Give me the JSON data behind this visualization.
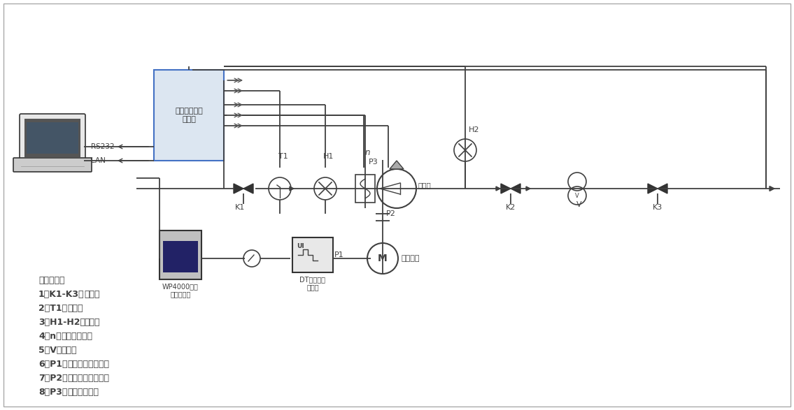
{
  "bg_color": "#ffffff",
  "line_color": "#404040",
  "box_fill": "#dce6f1",
  "text_color": "#000000",
  "title_color": "#000000",
  "legend_items": [
    {
      "num": "1",
      "key": "K1-K3",
      "desc": "电磁阀"
    },
    {
      "num": "2",
      "key": "T1",
      "desc": "温度计"
    },
    {
      "num": "3",
      "key": "H1-H2",
      "desc": "压力计"
    },
    {
      "num": "4",
      "key": "n",
      "desc": "水泵实时转速"
    },
    {
      "num": "5",
      "key": "V",
      "desc": "流量计"
    },
    {
      "num": "6",
      "key": "P1",
      "desc": "拖动电机输入功率"
    },
    {
      "num": "7",
      "key": "P2",
      "desc": "拖动电机输出功率"
    },
    {
      "num": "8",
      "key": "P3",
      "desc": "水泵输出功率"
    }
  ],
  "legend_title": "参量说明：",
  "instruments": {
    "tester_label": "水泵综合参数\n测试仪",
    "wp4000_label": "WP4000变频\n功率分析仪",
    "dt_label": "DT系列数字\n变送器",
    "motor_label": "拖动电机",
    "pump_label": "离心泵"
  },
  "component_labels": {
    "K1": "K1",
    "T1": "T1",
    "H1": "H1",
    "n": "n",
    "P3": "P3",
    "H2": "H2",
    "K2": "K2",
    "V": "V",
    "K3": "K3",
    "P1": "P1",
    "P2": "P2",
    "RS232": "RS232",
    "LAN": "LAN"
  }
}
